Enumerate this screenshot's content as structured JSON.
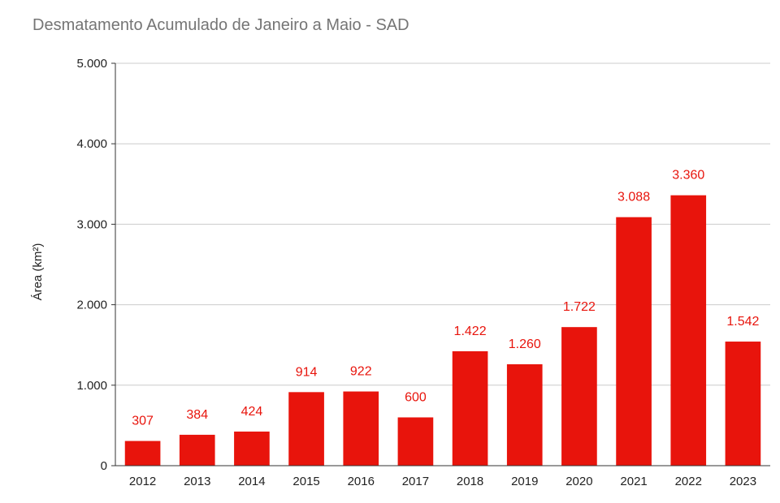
{
  "colors": {
    "bar": "#e8140c",
    "label": "#e8140c",
    "grid": "#cccccc",
    "axis": "#333333",
    "title": "#757575"
  },
  "chart_data": {
    "type": "bar",
    "title": "Desmatamento Acumulado de Janeiro a Maio - SAD",
    "xlabel": "",
    "ylabel": "Área (km²)",
    "ylim": [
      0,
      5000
    ],
    "yticks": [
      0,
      1000,
      2000,
      3000,
      4000,
      5000
    ],
    "ytick_labels": [
      "0",
      "1.000",
      "2.000",
      "3.000",
      "4.000",
      "5.000"
    ],
    "grid": true,
    "legend": "none",
    "categories": [
      "2012",
      "2013",
      "2014",
      "2015",
      "2016",
      "2017",
      "2018",
      "2019",
      "2020",
      "2021",
      "2022",
      "2023"
    ],
    "values": [
      307,
      384,
      424,
      914,
      922,
      600,
      1422,
      1260,
      1722,
      3088,
      3360,
      1542
    ],
    "value_labels": [
      "307",
      "384",
      "424",
      "914",
      "922",
      "600",
      "1.422",
      "1.260",
      "1.722",
      "3.088",
      "3.360",
      "1.542"
    ]
  }
}
